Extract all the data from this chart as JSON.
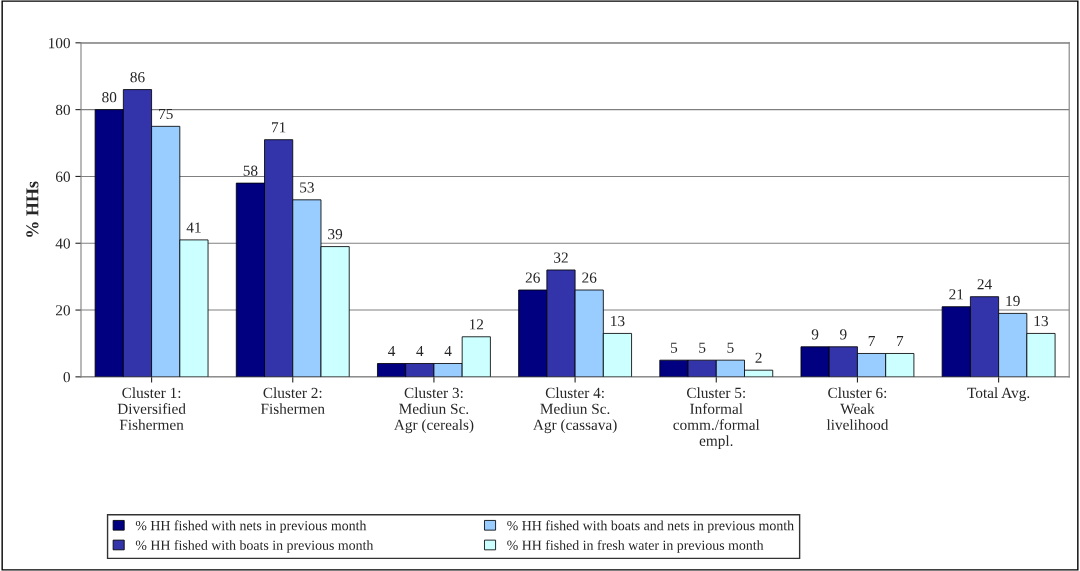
{
  "chart_data": {
    "type": "bar",
    "ylabel": "% HHs",
    "categories": [
      "Cluster 1:\nDiversified\nFishermen",
      "Cluster 2:\nFishermen",
      "Cluster 3:\nMediun Sc.\nAgr (cereals)",
      "Cluster 4:\nMediun Sc.\nAgr (cassava)",
      "Cluster 5:\nInformal\ncomm./formal\nempl.",
      "Cluster 6:\nWeak\nlivelihood",
      "Total Avg."
    ],
    "series": [
      {
        "name": "% HH fished with nets in previous month",
        "color": "#000080",
        "values": [
          80,
          58,
          4,
          26,
          5,
          9,
          21
        ]
      },
      {
        "name": "% HH fished with boats in previous month",
        "color": "#3333aa",
        "values": [
          86,
          71,
          4,
          32,
          5,
          9,
          24
        ]
      },
      {
        "name": "% HH fished with boats and nets in previous month",
        "color": "#99ccff",
        "values": [
          75,
          53,
          4,
          26,
          5,
          7,
          19
        ]
      },
      {
        "name": "% HH fished in fresh water in previous month",
        "color": "#ccffff",
        "values": [
          41,
          39,
          12,
          13,
          2,
          7,
          13
        ]
      }
    ],
    "ylim": [
      0,
      100
    ],
    "yticks": [
      0,
      20,
      40,
      60,
      80,
      100
    ],
    "grid": "y",
    "data_labels": true,
    "legend": "bottom"
  }
}
